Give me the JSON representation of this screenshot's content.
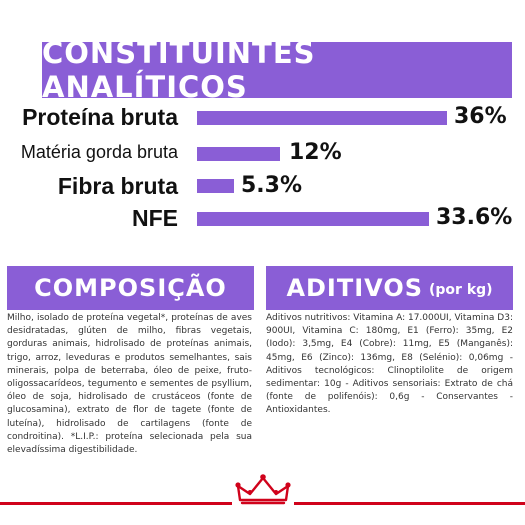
{
  "analytical": {
    "title": "CONSTITUINTES ANALÍTICOS",
    "rows": [
      {
        "label": "Proteína bruta",
        "value": "36%"
      },
      {
        "label": "Matéria gorda bruta",
        "value": "12%"
      },
      {
        "label": "Fibra bruta",
        "value": "5.3%"
      },
      {
        "label": "NFE",
        "value": "33.6%"
      }
    ]
  },
  "composition": {
    "title": "COMPOSIÇÃO",
    "text": "Milho, isolado de proteína vegetal*, proteínas de aves desidratadas, glúten de milho, fibras vegetais, gorduras animais, hidrolisado de proteínas animais, trigo, arroz, leveduras e produtos semelhantes, sais minerais, polpa de beterraba, óleo de peixe, fruto-oligossacarídeos, tegumento e sementes de psyllium, óleo de soja, hidrolisado de crustáceos (fonte de glucosamina), extrato de flor de tagete (fonte de luteína), hidrolisado de cartilagens (fonte de condroitina). *L.I.P.: proteína selecionada pela sua elevadíssima digestibilidade."
  },
  "additives": {
    "title": "ADITIVOS",
    "title_suffix": "(por kg)",
    "text": "Aditivos nutritivos: Vitamina A: 17.000UI, Vitamina D3: 900UI, Vitamina C: 180mg, E1 (Ferro): 35mg, E2 (Iodo): 3,5mg, E4 (Cobre): 11mg, E5 (Manganês): 45mg, E6 (Zinco): 136mg, E8 (Selénio): 0,06mg - Aditivos tecnológicos: Clinoptilolite de origem sedimentar: 10g - Aditivos sensoriais: Extrato de chá (fonte de polifenóis): 0,6g - Conservantes - Antioxidantes."
  },
  "colors": {
    "accent": "#8a5ed6",
    "brand_red": "#d0021b",
    "text": "#111111"
  },
  "logo": {
    "icon": "crown-icon"
  }
}
